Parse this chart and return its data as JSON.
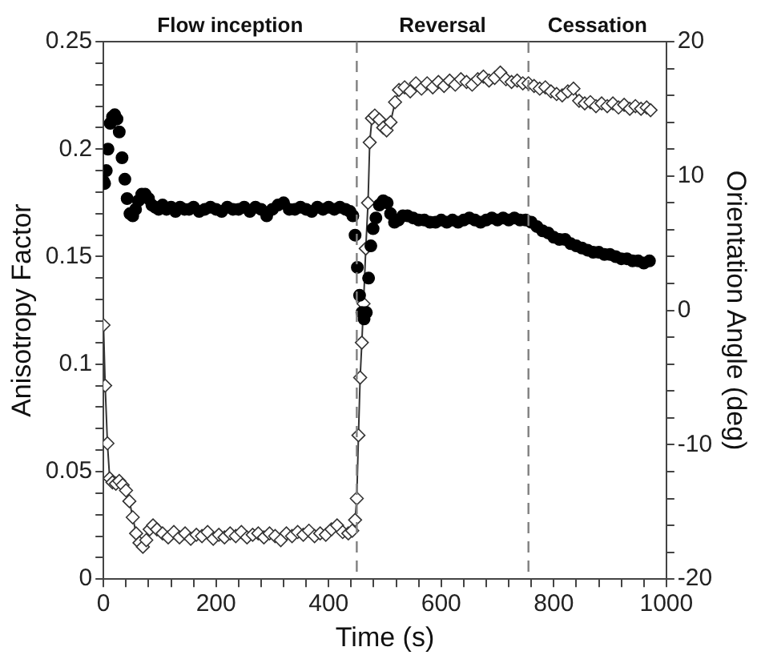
{
  "chart_data": {
    "type": "scatter",
    "xlabel": "Time (s)",
    "ylabel": "Anisotropy Factor",
    "y2label": "Orientation Angle (deg)",
    "xlim": [
      0,
      1000
    ],
    "xticks": [
      0,
      {
        "value": 40,
        "label": null
      },
      {
        "value": 80,
        "label": null
      },
      {
        "value": 120,
        "label": null
      },
      {
        "value": 160,
        "label": null
      },
      200,
      {
        "value": 240,
        "label": null
      },
      {
        "value": 280,
        "label": null
      },
      {
        "value": 320,
        "label": null
      },
      {
        "value": 360,
        "label": null
      },
      400,
      {
        "value": 440,
        "label": null
      },
      {
        "value": 480,
        "label": null
      },
      {
        "value": 520,
        "label": null
      },
      {
        "value": 560,
        "label": null
      },
      600,
      {
        "value": 640,
        "label": null
      },
      {
        "value": 680,
        "label": null
      },
      {
        "value": 720,
        "label": null
      },
      {
        "value": 760,
        "label": null
      },
      800,
      {
        "value": 840,
        "label": null
      },
      {
        "value": 880,
        "label": null
      },
      {
        "value": 920,
        "label": null
      },
      {
        "value": 960,
        "label": null
      },
      1000
    ],
    "ylim": [
      0,
      0.25
    ],
    "yticks": [
      0,
      {
        "value": 0.01,
        "label": null
      },
      {
        "value": 0.02,
        "label": null
      },
      {
        "value": 0.03,
        "label": null
      },
      {
        "value": 0.04,
        "label": null
      },
      0.05,
      {
        "value": 0.06,
        "label": null
      },
      {
        "value": 0.07,
        "label": null
      },
      {
        "value": 0.08,
        "label": null
      },
      {
        "value": 0.09,
        "label": null
      },
      0.1,
      {
        "value": 0.11,
        "label": null
      },
      {
        "value": 0.12,
        "label": null
      },
      {
        "value": 0.13,
        "label": null
      },
      {
        "value": 0.14,
        "label": null
      },
      0.15,
      {
        "value": 0.16,
        "label": null
      },
      {
        "value": 0.17,
        "label": null
      },
      {
        "value": 0.18,
        "label": null
      },
      {
        "value": 0.19,
        "label": null
      },
      0.2,
      {
        "value": 0.21,
        "label": null
      },
      {
        "value": 0.22,
        "label": null
      },
      {
        "value": 0.23,
        "label": null
      },
      {
        "value": 0.24,
        "label": null
      },
      0.25
    ],
    "y2lim": [
      -20,
      20
    ],
    "y2ticks": [
      -20,
      {
        "value": -18,
        "label": null
      },
      {
        "value": -16,
        "label": null
      },
      {
        "value": -14,
        "label": null
      },
      {
        "value": -12,
        "label": null
      },
      -10,
      {
        "value": -8,
        "label": null
      },
      {
        "value": -6,
        "label": null
      },
      {
        "value": -4,
        "label": null
      },
      {
        "value": -2,
        "label": null
      },
      0,
      {
        "value": 2,
        "label": null
      },
      {
        "value": 4,
        "label": null
      },
      {
        "value": 6,
        "label": null
      },
      {
        "value": 8,
        "label": null
      },
      10,
      {
        "value": 12,
        "label": null
      },
      {
        "value": 14,
        "label": null
      },
      {
        "value": 16,
        "label": null
      },
      {
        "value": 18,
        "label": null
      },
      20
    ],
    "grid": false,
    "legend": false,
    "ref_lines": [
      {
        "axis": "x",
        "value": 450,
        "color": "#808080",
        "line_style": "dashed"
      },
      {
        "axis": "x",
        "value": 755,
        "color": "#808080",
        "line_style": "dashed"
      }
    ],
    "annotations": [
      "Flow inception",
      "Reversal",
      "Cessation"
    ],
    "series": [
      {
        "type": "scatter",
        "marker": "circle",
        "color": "#000000",
        "x": [
          0,
          2,
          5,
          8,
          12,
          16,
          20,
          24,
          28,
          33,
          38,
          42,
          47,
          52,
          57,
          62,
          68,
          74,
          80,
          86,
          92,
          98,
          105,
          112,
          120,
          128,
          136,
          144,
          152,
          160,
          170,
          180,
          190,
          200,
          210,
          220,
          230,
          240,
          250,
          260,
          270,
          280,
          290,
          300,
          310,
          320,
          330,
          340,
          350,
          360,
          370,
          380,
          390,
          400,
          410,
          420,
          430,
          438,
          443,
          447,
          451,
          455,
          459,
          463,
          467,
          471,
          475,
          479,
          484,
          490,
          497,
          504,
          510,
          517,
          524,
          532,
          540,
          550,
          560,
          570,
          580,
          590,
          600,
          610,
          620,
          630,
          640,
          650,
          660,
          670,
          680,
          690,
          700,
          710,
          720,
          730,
          740,
          750,
          760,
          770,
          780,
          790,
          800,
          810,
          820,
          830,
          840,
          850,
          860,
          870,
          880,
          890,
          900,
          910,
          920,
          930,
          940,
          950,
          960,
          970
        ],
        "values": [
          0.185,
          0.184,
          0.19,
          0.2,
          0.212,
          0.215,
          0.216,
          0.214,
          0.208,
          0.196,
          0.186,
          0.177,
          0.17,
          0.169,
          0.172,
          0.176,
          0.179,
          0.179,
          0.177,
          0.174,
          0.173,
          0.172,
          0.174,
          0.172,
          0.173,
          0.171,
          0.173,
          0.172,
          0.172,
          0.173,
          0.171,
          0.172,
          0.173,
          0.172,
          0.171,
          0.173,
          0.172,
          0.172,
          0.173,
          0.171,
          0.173,
          0.172,
          0.169,
          0.172,
          0.174,
          0.175,
          0.172,
          0.172,
          0.173,
          0.172,
          0.171,
          0.173,
          0.172,
          0.173,
          0.172,
          0.173,
          0.172,
          0.171,
          0.169,
          0.16,
          0.145,
          0.132,
          0.124,
          0.121,
          0.124,
          0.14,
          0.155,
          0.163,
          0.168,
          0.174,
          0.176,
          0.175,
          0.17,
          0.166,
          0.167,
          0.169,
          0.169,
          0.168,
          0.167,
          0.167,
          0.166,
          0.166,
          0.167,
          0.166,
          0.167,
          0.166,
          0.167,
          0.168,
          0.167,
          0.166,
          0.167,
          0.168,
          0.167,
          0.168,
          0.167,
          0.168,
          0.167,
          0.167,
          0.166,
          0.164,
          0.162,
          0.161,
          0.159,
          0.158,
          0.158,
          0.156,
          0.155,
          0.154,
          0.153,
          0.152,
          0.152,
          0.151,
          0.151,
          0.15,
          0.149,
          0.149,
          0.148,
          0.148,
          0.147,
          0.148
        ]
      },
      {
        "type": "line",
        "marker": "diamond",
        "axis": "y2",
        "color": "#333333",
        "x": [
          0,
          3,
          7,
          11,
          16,
          22,
          28,
          34,
          40,
          46,
          52,
          58,
          64,
          70,
          76,
          82,
          88,
          95,
          105,
          115,
          125,
          135,
          145,
          155,
          165,
          175,
          185,
          195,
          205,
          215,
          225,
          235,
          245,
          255,
          265,
          275,
          285,
          295,
          305,
          315,
          325,
          335,
          345,
          355,
          365,
          375,
          385,
          395,
          405,
          415,
          425,
          435,
          442,
          447,
          450,
          453,
          456,
          459,
          462,
          466,
          470,
          473,
          477,
          482,
          490,
          497,
          503,
          510,
          518,
          525,
          535,
          545,
          555,
          565,
          575,
          585,
          595,
          605,
          615,
          625,
          635,
          645,
          655,
          665,
          675,
          685,
          695,
          705,
          715,
          725,
          735,
          745,
          755,
          765,
          775,
          785,
          795,
          805,
          815,
          825,
          835,
          845,
          855,
          865,
          875,
          885,
          895,
          905,
          915,
          925,
          935,
          945,
          955,
          965,
          972
        ],
        "values": [
          -1.1,
          -5.6,
          -9.9,
          -12.5,
          -12.8,
          -12.9,
          -12.7,
          -13.0,
          -13.4,
          -14.2,
          -15.4,
          -16.6,
          -17.3,
          -17.6,
          -17.1,
          -16.3,
          -16.0,
          -16.3,
          -16.6,
          -16.9,
          -16.5,
          -16.9,
          -16.6,
          -17.0,
          -16.7,
          -16.8,
          -16.5,
          -17.0,
          -16.7,
          -16.9,
          -16.6,
          -16.8,
          -16.5,
          -16.9,
          -16.7,
          -16.6,
          -16.9,
          -16.6,
          -16.8,
          -17.1,
          -16.6,
          -16.8,
          -16.5,
          -16.7,
          -16.4,
          -16.8,
          -16.6,
          -16.7,
          -16.3,
          -16.0,
          -16.5,
          -16.6,
          -16.4,
          -15.6,
          -14.0,
          -9.3,
          -5.0,
          -2.4,
          0.5,
          4.6,
          8.0,
          12.5,
          14.3,
          14.5,
          14.2,
          13.6,
          13.4,
          14.0,
          15.5,
          16.4,
          16.6,
          16.3,
          16.9,
          16.5,
          16.9,
          16.6,
          17.0,
          16.7,
          17.1,
          16.8,
          17.2,
          17.0,
          16.8,
          17.2,
          17.4,
          17.1,
          17.3,
          17.7,
          17.2,
          17.0,
          17.1,
          16.9,
          16.9,
          16.7,
          16.5,
          16.6,
          16.3,
          16.1,
          16.0,
          16.3,
          16.5,
          15.6,
          15.4,
          15.5,
          15.2,
          15.4,
          15.2,
          15.4,
          15.1,
          15.3,
          15.0,
          15.2,
          15.0,
          15.1,
          14.9
        ]
      }
    ]
  }
}
